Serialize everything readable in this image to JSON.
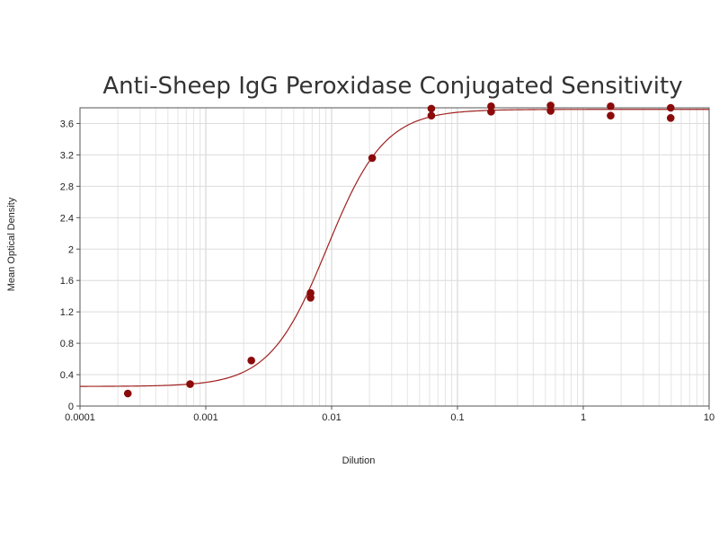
{
  "chart_data": {
    "type": "scatter",
    "title": "Anti-Sheep IgG Peroxidase Conjugated Sensitivity",
    "xlabel": "Dilution",
    "ylabel": "Mean Optical Density",
    "x_scale": "log",
    "xlim": [
      0.0001,
      10
    ],
    "ylim": [
      0,
      3.8
    ],
    "x_ticks": [
      {
        "value": 0.0001,
        "label": "0.0001"
      },
      {
        "value": 0.001,
        "label": "0.001"
      },
      {
        "value": 0.01,
        "label": "0.01"
      },
      {
        "value": 0.1,
        "label": "0.1"
      },
      {
        "value": 1,
        "label": "1"
      },
      {
        "value": 10,
        "label": "10"
      }
    ],
    "y_ticks": [
      {
        "value": 0,
        "label": "0"
      },
      {
        "value": 0.4,
        "label": "0.4"
      },
      {
        "value": 0.8,
        "label": "0.8"
      },
      {
        "value": 1.2,
        "label": "1.2"
      },
      {
        "value": 1.6,
        "label": "1.6"
      },
      {
        "value": 2,
        "label": "2"
      },
      {
        "value": 2.4,
        "label": "2.4"
      },
      {
        "value": 2.8,
        "label": "2.8"
      },
      {
        "value": 3.2,
        "label": "3.2"
      },
      {
        "value": 3.6,
        "label": "3.6"
      }
    ],
    "grid": true,
    "series": [
      {
        "kind": "points",
        "color": "#8b0a0a",
        "points": [
          {
            "x": 0.00024,
            "y": 0.16
          },
          {
            "x": 0.00075,
            "y": 0.28
          },
          {
            "x": 0.0023,
            "y": 0.58
          },
          {
            "x": 0.0068,
            "y": 1.38
          },
          {
            "x": 0.0068,
            "y": 1.44
          },
          {
            "x": 0.021,
            "y": 3.16
          },
          {
            "x": 0.062,
            "y": 3.7
          },
          {
            "x": 0.062,
            "y": 3.79
          },
          {
            "x": 0.185,
            "y": 3.75
          },
          {
            "x": 0.185,
            "y": 3.82
          },
          {
            "x": 0.55,
            "y": 3.76
          },
          {
            "x": 0.55,
            "y": 3.83
          },
          {
            "x": 1.65,
            "y": 3.7
          },
          {
            "x": 1.65,
            "y": 3.82
          },
          {
            "x": 4.95,
            "y": 3.67
          },
          {
            "x": 4.95,
            "y": 3.8
          }
        ]
      },
      {
        "kind": "curve",
        "color": "#a02020",
        "fit": {
          "bottom": 0.25,
          "top": 3.78,
          "ec50": 0.0092,
          "hill": 1.9
        }
      }
    ]
  }
}
